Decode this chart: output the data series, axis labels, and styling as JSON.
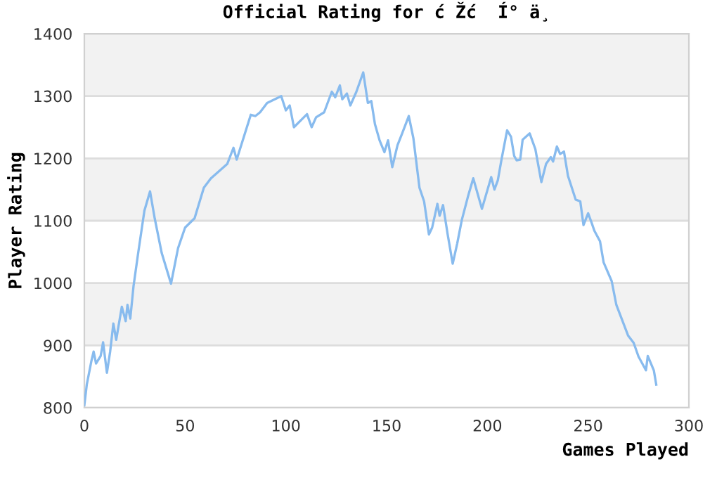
{
  "chart_data": {
    "type": "line",
    "title": "Official Rating for ć Žć  Í° ä¸",
    "xlabel": "Games Played",
    "ylabel": "Player Rating",
    "xlim": [
      0,
      300
    ],
    "xticks": [
      0,
      50,
      100,
      150,
      200,
      250,
      300
    ],
    "ylim": [
      800,
      1400
    ],
    "yticks": [
      800,
      900,
      1000,
      1100,
      1200,
      1300,
      1400
    ],
    "grid": "y",
    "marker": "none",
    "line_style": "solid",
    "series": [
      {
        "color": "#88bbee",
        "x": [
          0,
          1.2,
          3.5,
          4.6,
          5.8,
          8.1,
          9.3,
          11.2,
          12.8,
          14.4,
          15.8,
          18.6,
          20.5,
          21.4,
          22.8,
          24.4,
          26.7,
          29.8,
          32.6,
          34.9,
          38.4,
          43,
          46.5,
          50,
          54.7,
          59.3,
          62.8,
          70.9,
          74,
          75.6,
          82.6,
          84.9,
          87.2,
          90.7,
          97.7,
          100,
          101.9,
          104,
          110.5,
          112.8,
          115,
          119,
          122.8,
          124.5,
          126.8,
          128,
          130.3,
          132,
          135,
          138.4,
          140.7,
          142.4,
          144.2,
          146.5,
          148.9,
          150.7,
          152.8,
          155.4,
          157.7,
          161,
          163.3,
          166.3,
          168.6,
          171,
          172.6,
          175.2,
          176.3,
          178,
          180.3,
          182.8,
          185,
          187.3,
          190.3,
          193,
          197.3,
          201.9,
          203.5,
          205.2,
          207,
          209.8,
          211.7,
          213.3,
          214.5,
          216.3,
          217.5,
          221,
          223.8,
          226.8,
          229.1,
          231.5,
          232.6,
          234.5,
          236.1,
          238,
          240,
          243.8,
          246.1,
          247.7,
          250,
          251.7,
          253.1,
          255.9,
          257.7,
          261.7,
          264,
          269.8,
          272.6,
          275,
          278.7,
          279.6,
          282.6,
          283.8
        ],
        "values": [
          804,
          837,
          875,
          890,
          871,
          883,
          905,
          856,
          890,
          935,
          909,
          962,
          939,
          965,
          943,
          995,
          1048,
          1116,
          1147,
          1104,
          1048,
          999,
          1056,
          1089,
          1104,
          1153,
          1168,
          1191,
          1217,
          1198,
          1270,
          1268,
          1274,
          1289,
          1300,
          1277,
          1285,
          1250,
          1271,
          1250,
          1266,
          1274,
          1307,
          1298,
          1317,
          1295,
          1304,
          1285,
          1307,
          1338,
          1289,
          1292,
          1255,
          1229,
          1210,
          1229,
          1186,
          1221,
          1240,
          1268,
          1232,
          1153,
          1131,
          1078,
          1089,
          1127,
          1108,
          1125,
          1078,
          1031,
          1063,
          1101,
          1138,
          1168,
          1119,
          1170,
          1150,
          1165,
          1198,
          1245,
          1235,
          1204,
          1197,
          1198,
          1230,
          1240,
          1215,
          1162,
          1191,
          1202,
          1195,
          1219,
          1207,
          1211,
          1172,
          1134,
          1131,
          1093,
          1112,
          1097,
          1084,
          1067,
          1033,
          1003,
          965,
          916,
          904,
          882,
          860,
          883,
          860,
          837
        ]
      }
    ]
  }
}
